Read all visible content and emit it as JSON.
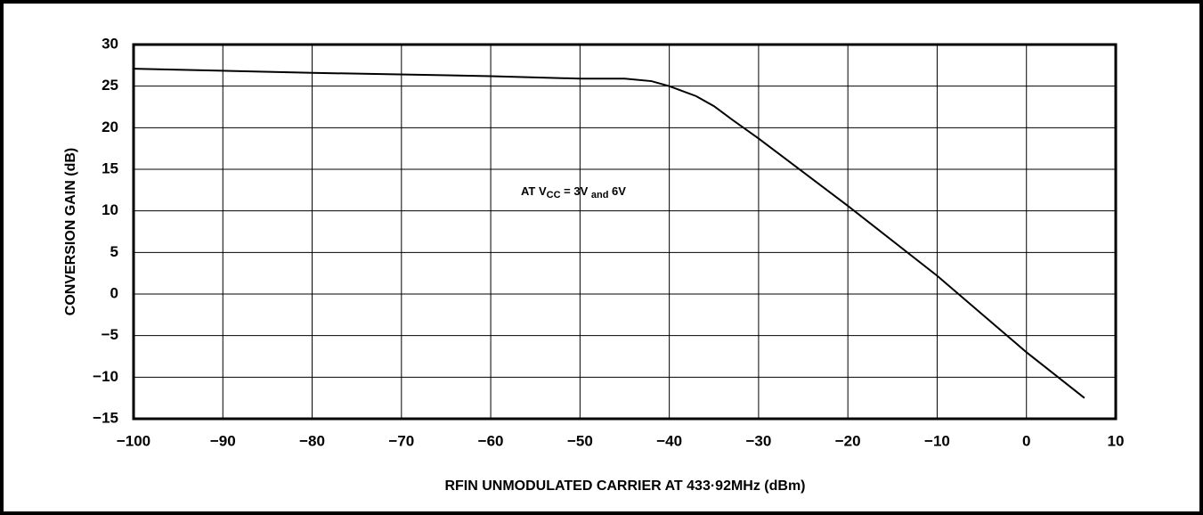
{
  "chart_data": {
    "type": "line",
    "xlabel": "RFIN UNMODULATED CARRIER AT 433·92MHz (dBm)",
    "ylabel": "CONVERSION GAIN (dB)",
    "annotation": [
      {
        "text": "AT V"
      },
      {
        "text": "CC",
        "sub": true
      },
      {
        "text": " = 3V "
      },
      {
        "text": "and",
        "sub": true
      },
      {
        "text": " 6V"
      }
    ],
    "x": [
      -100,
      -80,
      -60,
      -50,
      -45,
      -42,
      -40,
      -37,
      -35,
      -33,
      -30,
      -20,
      -10,
      0,
      6.5
    ],
    "series": [
      {
        "color": "#000000",
        "values": [
          27.1,
          26.6,
          26.2,
          25.9,
          25.9,
          25.6,
          25.0,
          23.8,
          22.6,
          21.0,
          18.7,
          10.6,
          2.2,
          -7.0,
          -12.5
        ]
      }
    ],
    "xlim": [
      -100,
      10
    ],
    "xticks": [
      {
        "value": -100,
        "label": "−100"
      },
      {
        "value": -90,
        "label": "−90"
      },
      {
        "value": -80,
        "label": "−80"
      },
      {
        "value": -70,
        "label": "−70"
      },
      {
        "value": -60,
        "label": "−60"
      },
      {
        "value": -50,
        "label": "−50"
      },
      {
        "value": -40,
        "label": "−40"
      },
      {
        "value": -30,
        "label": "−30"
      },
      {
        "value": -20,
        "label": "−20"
      },
      {
        "value": -10,
        "label": "−10"
      },
      0,
      10
    ],
    "ylim": [
      -15,
      30
    ],
    "yticks": [
      {
        "value": -15,
        "label": "−15"
      },
      {
        "value": -10,
        "label": "−10"
      },
      {
        "value": -5,
        "label": "−5"
      },
      0,
      5,
      10,
      15,
      20,
      25,
      30
    ],
    "grid": true
  }
}
